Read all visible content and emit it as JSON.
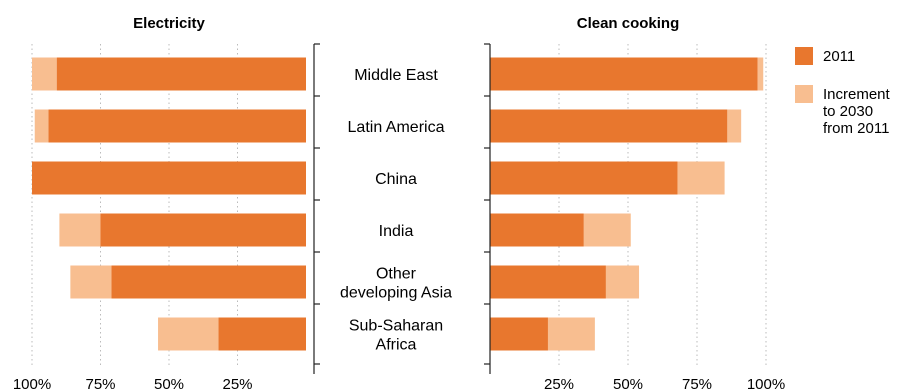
{
  "chart_data": {
    "type": "bar",
    "orientation": "horizontal-butterfly",
    "categories": [
      [
        "Middle East"
      ],
      [
        "Latin America"
      ],
      [
        "China"
      ],
      [
        "India"
      ],
      [
        "Other",
        "developing Asia"
      ],
      [
        "Sub-Saharan",
        "Africa"
      ]
    ],
    "panels": [
      {
        "title": "Electricity",
        "direction": "left",
        "xlim": [
          0,
          100
        ],
        "tick_labels": [
          "100%",
          "75%",
          "50%",
          "25%"
        ],
        "tick_values": [
          100,
          75,
          50,
          25
        ],
        "series": [
          {
            "name": "2011",
            "values": [
              91,
              94,
              100,
              75,
              71,
              32
            ]
          },
          {
            "name": "Increment to 2030 from 2011",
            "values": [
              9,
              5,
              0,
              15,
              15,
              22
            ]
          }
        ]
      },
      {
        "title": "Clean cooking",
        "direction": "right",
        "xlim": [
          0,
          100
        ],
        "tick_labels": [
          "25%",
          "50%",
          "75%",
          "100%"
        ],
        "tick_values": [
          25,
          50,
          75,
          100
        ],
        "series": [
          {
            "name": "2011",
            "values": [
              97,
              86,
              68,
              34,
              42,
              21
            ]
          },
          {
            "name": "Increment to 2030 from 2011",
            "values": [
              2,
              5,
              17,
              17,
              12,
              17
            ]
          }
        ]
      }
    ],
    "legend": {
      "position": "right",
      "entries": [
        {
          "lines": [
            "2011"
          ],
          "color": "#e8772e"
        },
        {
          "lines": [
            "Increment",
            "to 2030",
            "from 2011"
          ],
          "color": "#f8be90"
        }
      ]
    },
    "grid": "vertical-dotted",
    "colors": {
      "base": "#e8772e",
      "increment": "#f8be90",
      "grid": "#bbbbbb",
      "axis": "#222222"
    }
  }
}
